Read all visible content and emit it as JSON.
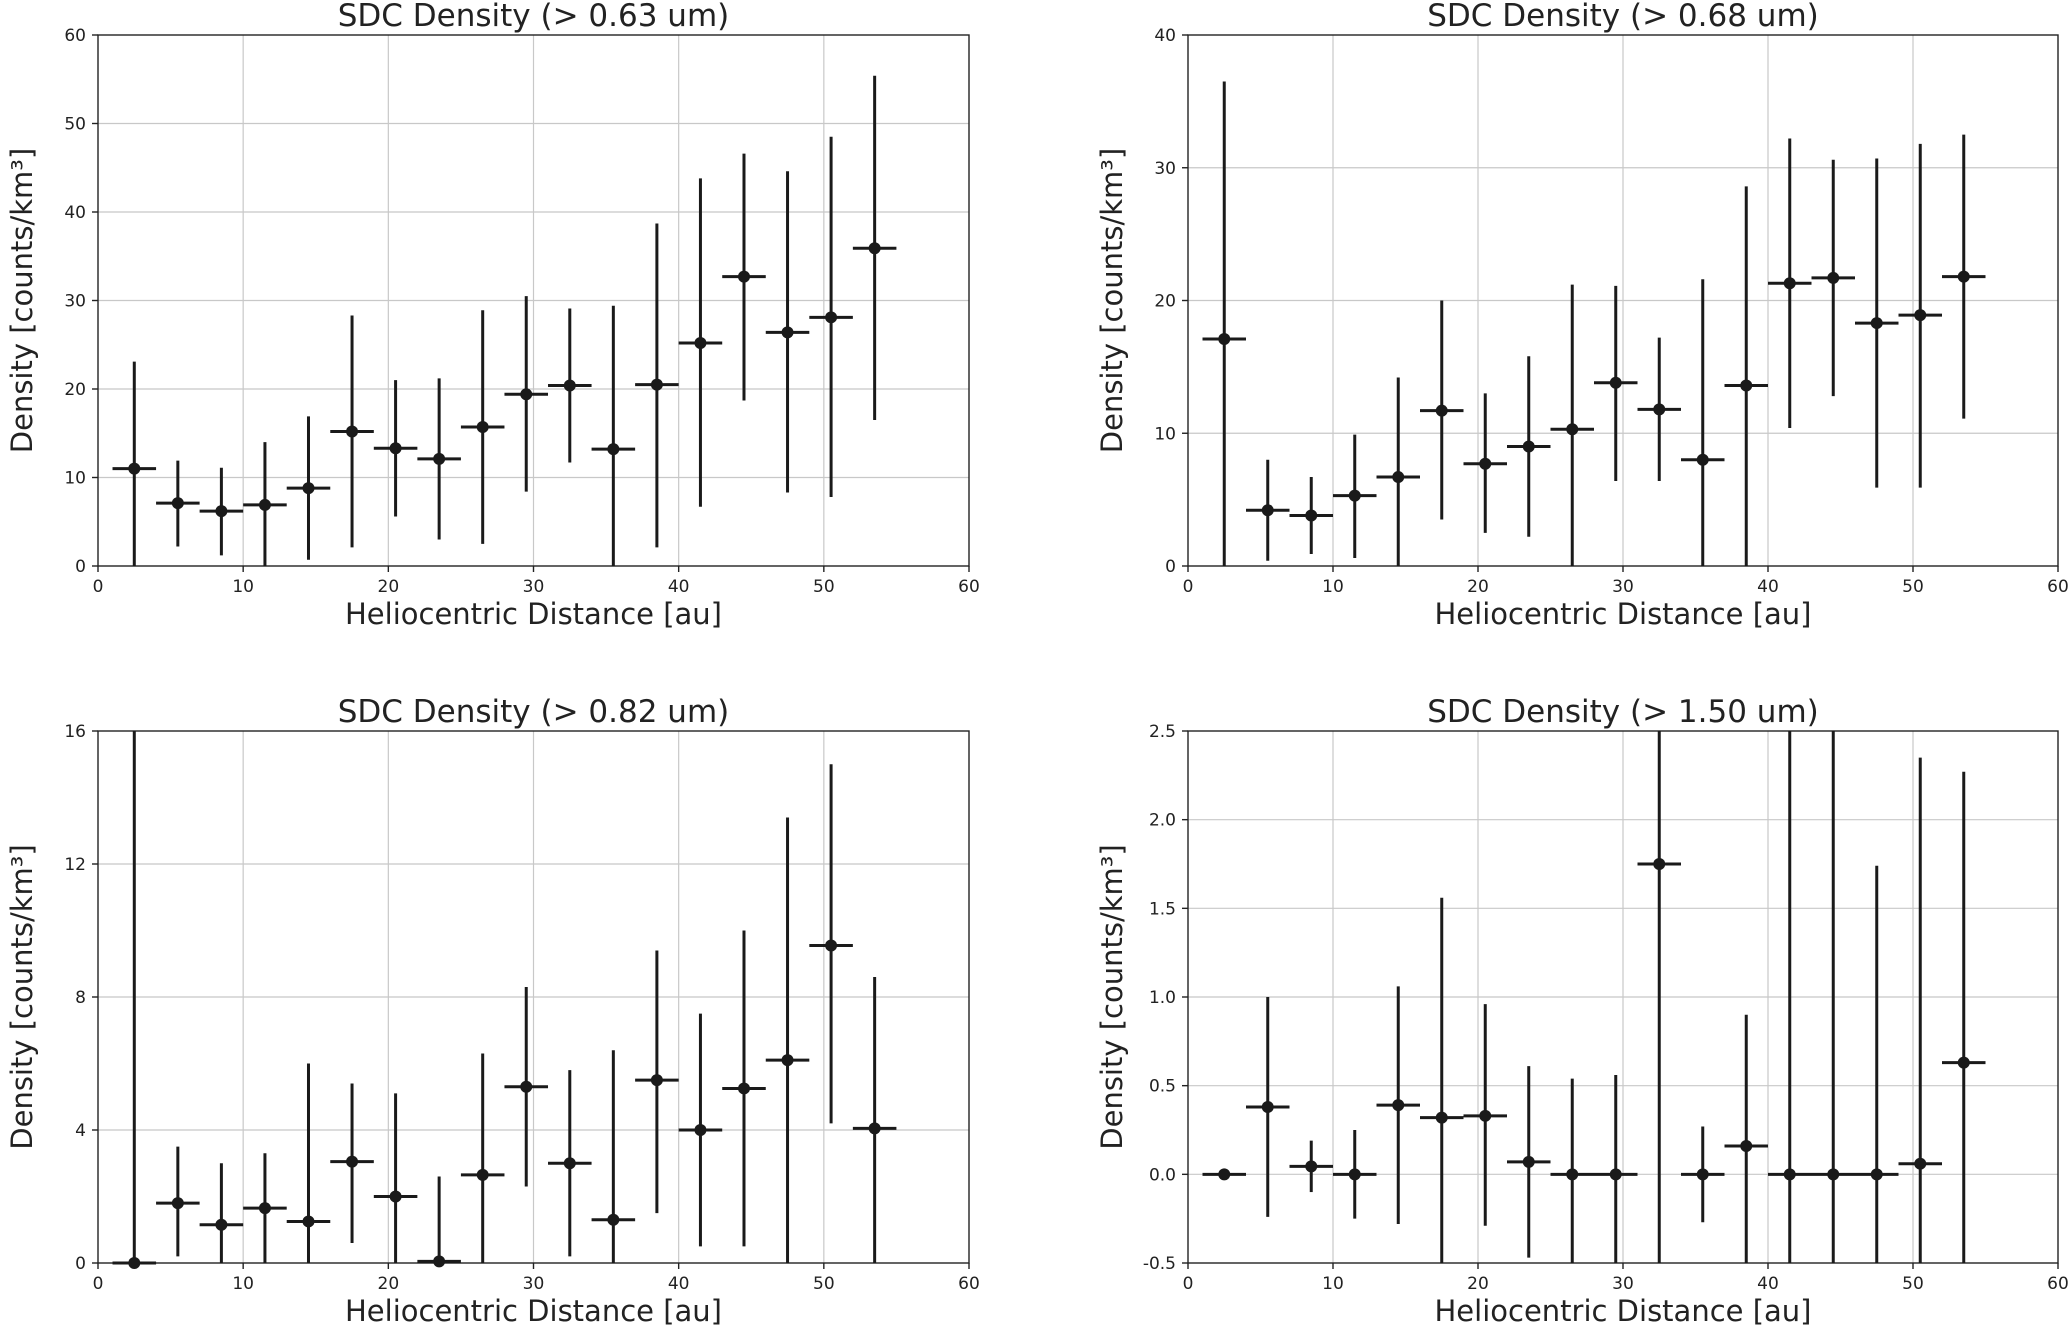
{
  "chart_data": [
    {
      "type": "scatter",
      "title": "SDC Density (> 0.63 um)",
      "xlabel": "Heliocentric Distance [au]",
      "ylabel": "Density [counts/km³]",
      "xlim": [
        0,
        60
      ],
      "ylim": [
        0,
        60
      ],
      "xticks": [
        0,
        10,
        20,
        30,
        40,
        50,
        60
      ],
      "xtick_labels": [
        "0",
        "10",
        "20",
        "30",
        "40",
        "50",
        "60"
      ],
      "yticks": [
        0,
        10,
        20,
        30,
        40,
        50,
        60
      ],
      "ytick_labels": [
        "0",
        "10",
        "20",
        "30",
        "40",
        "50",
        "60"
      ],
      "grid": true,
      "xerr": 1.5,
      "points": [
        {
          "x": 2.5,
          "y": 11.0,
          "lo": 0.0,
          "hi": 23.1
        },
        {
          "x": 5.5,
          "y": 7.1,
          "lo": 2.2,
          "hi": 11.9
        },
        {
          "x": 8.5,
          "y": 6.2,
          "lo": 1.2,
          "hi": 11.1
        },
        {
          "x": 11.5,
          "y": 6.9,
          "lo": 0.0,
          "hi": 14.0
        },
        {
          "x": 14.5,
          "y": 8.8,
          "lo": 0.7,
          "hi": 16.9
        },
        {
          "x": 17.5,
          "y": 15.2,
          "lo": 2.1,
          "hi": 28.3
        },
        {
          "x": 20.5,
          "y": 13.3,
          "lo": 5.6,
          "hi": 21.0
        },
        {
          "x": 23.5,
          "y": 12.1,
          "lo": 3.0,
          "hi": 21.2
        },
        {
          "x": 26.5,
          "y": 15.7,
          "lo": 2.5,
          "hi": 28.9
        },
        {
          "x": 29.5,
          "y": 19.4,
          "lo": 8.4,
          "hi": 30.5
        },
        {
          "x": 32.5,
          "y": 20.4,
          "lo": 11.7,
          "hi": 29.1
        },
        {
          "x": 35.5,
          "y": 13.2,
          "lo": 0.0,
          "hi": 29.4
        },
        {
          "x": 38.5,
          "y": 20.5,
          "lo": 2.1,
          "hi": 38.7
        },
        {
          "x": 41.5,
          "y": 25.2,
          "lo": 6.7,
          "hi": 43.8
        },
        {
          "x": 44.5,
          "y": 32.7,
          "lo": 18.7,
          "hi": 46.6
        },
        {
          "x": 47.5,
          "y": 26.4,
          "lo": 8.3,
          "hi": 44.6
        },
        {
          "x": 50.5,
          "y": 28.1,
          "lo": 7.8,
          "hi": 48.5
        },
        {
          "x": 53.5,
          "y": 35.9,
          "lo": 16.5,
          "hi": 55.4
        }
      ]
    },
    {
      "type": "scatter",
      "title": "SDC Density (> 0.68 um)",
      "xlabel": "Heliocentric Distance [au]",
      "ylabel": "Density [counts/km³]",
      "xlim": [
        0,
        60
      ],
      "ylim": [
        0,
        40
      ],
      "xticks": [
        0,
        10,
        20,
        30,
        40,
        50,
        60
      ],
      "xtick_labels": [
        "0",
        "10",
        "20",
        "30",
        "40",
        "50",
        "60"
      ],
      "yticks": [
        0,
        10,
        20,
        30,
        40
      ],
      "ytick_labels": [
        "0",
        "10",
        "20",
        "30",
        "40"
      ],
      "grid": true,
      "xerr": 1.5,
      "points": [
        {
          "x": 2.5,
          "y": 17.1,
          "lo": 0.0,
          "hi": 36.5
        },
        {
          "x": 5.5,
          "y": 4.2,
          "lo": 0.4,
          "hi": 8.0
        },
        {
          "x": 8.5,
          "y": 3.8,
          "lo": 0.9,
          "hi": 6.7
        },
        {
          "x": 11.5,
          "y": 5.3,
          "lo": 0.6,
          "hi": 9.9
        },
        {
          "x": 14.5,
          "y": 6.7,
          "lo": 0.0,
          "hi": 14.2
        },
        {
          "x": 17.5,
          "y": 11.7,
          "lo": 3.5,
          "hi": 20.0
        },
        {
          "x": 20.5,
          "y": 7.7,
          "lo": 2.5,
          "hi": 13.0
        },
        {
          "x": 23.5,
          "y": 9.0,
          "lo": 2.2,
          "hi": 15.8
        },
        {
          "x": 26.5,
          "y": 10.3,
          "lo": 0.0,
          "hi": 21.2
        },
        {
          "x": 29.5,
          "y": 13.8,
          "lo": 6.4,
          "hi": 21.1
        },
        {
          "x": 32.5,
          "y": 11.8,
          "lo": 6.4,
          "hi": 17.2
        },
        {
          "x": 35.5,
          "y": 8.0,
          "lo": 0.0,
          "hi": 21.6
        },
        {
          "x": 38.5,
          "y": 13.6,
          "lo": 0.0,
          "hi": 28.6
        },
        {
          "x": 41.5,
          "y": 21.3,
          "lo": 10.4,
          "hi": 32.2
        },
        {
          "x": 44.5,
          "y": 21.7,
          "lo": 12.8,
          "hi": 30.6
        },
        {
          "x": 47.5,
          "y": 18.3,
          "lo": 5.9,
          "hi": 30.7
        },
        {
          "x": 50.5,
          "y": 18.9,
          "lo": 5.9,
          "hi": 31.8
        },
        {
          "x": 53.5,
          "y": 21.8,
          "lo": 11.1,
          "hi": 32.5
        }
      ]
    },
    {
      "type": "scatter",
      "title": "SDC Density (> 0.82 um)",
      "xlabel": "Heliocentric Distance [au]",
      "ylabel": "Density [counts/km³]",
      "xlim": [
        0,
        60
      ],
      "ylim": [
        0,
        16
      ],
      "xticks": [
        0,
        10,
        20,
        30,
        40,
        50,
        60
      ],
      "xtick_labels": [
        "0",
        "10",
        "20",
        "30",
        "40",
        "50",
        "60"
      ],
      "yticks": [
        0,
        4,
        8,
        12,
        16
      ],
      "ytick_labels": [
        "0",
        "4",
        "8",
        "12",
        "16"
      ],
      "grid": true,
      "xerr": 1.5,
      "points": [
        {
          "x": 2.5,
          "y": 0.0,
          "lo": 0.0,
          "hi": 16.0
        },
        {
          "x": 5.5,
          "y": 1.8,
          "lo": 0.2,
          "hi": 3.5
        },
        {
          "x": 8.5,
          "y": 1.15,
          "lo": 0.0,
          "hi": 3.0
        },
        {
          "x": 11.5,
          "y": 1.65,
          "lo": 0.0,
          "hi": 3.3
        },
        {
          "x": 14.5,
          "y": 1.25,
          "lo": 0.0,
          "hi": 6.0
        },
        {
          "x": 17.5,
          "y": 3.05,
          "lo": 0.6,
          "hi": 5.4
        },
        {
          "x": 20.5,
          "y": 2.0,
          "lo": 0.0,
          "hi": 5.1
        },
        {
          "x": 23.5,
          "y": 0.05,
          "lo": 0.0,
          "hi": 2.6
        },
        {
          "x": 26.5,
          "y": 2.65,
          "lo": 0.0,
          "hi": 6.3
        },
        {
          "x": 29.5,
          "y": 5.3,
          "lo": 2.3,
          "hi": 8.3
        },
        {
          "x": 32.5,
          "y": 3.0,
          "lo": 0.2,
          "hi": 5.8
        },
        {
          "x": 35.5,
          "y": 1.3,
          "lo": 0.0,
          "hi": 6.4
        },
        {
          "x": 38.5,
          "y": 5.5,
          "lo": 1.5,
          "hi": 9.4
        },
        {
          "x": 41.5,
          "y": 4.0,
          "lo": 0.5,
          "hi": 7.5
        },
        {
          "x": 44.5,
          "y": 5.25,
          "lo": 0.5,
          "hi": 10.0
        },
        {
          "x": 47.5,
          "y": 6.1,
          "lo": 0.0,
          "hi": 13.4
        },
        {
          "x": 50.5,
          "y": 9.55,
          "lo": 4.2,
          "hi": 15.0
        },
        {
          "x": 53.5,
          "y": 4.05,
          "lo": 0.0,
          "hi": 8.6
        }
      ]
    },
    {
      "type": "scatter",
      "title": "SDC Density (> 1.50 um)",
      "xlabel": "Heliocentric Distance [au]",
      "ylabel": "Density [counts/km³]",
      "xlim": [
        0,
        60
      ],
      "ylim": [
        -0.5,
        2.5
      ],
      "xticks": [
        0,
        10,
        20,
        30,
        40,
        50,
        60
      ],
      "xtick_labels": [
        "0",
        "10",
        "20",
        "30",
        "40",
        "50",
        "60"
      ],
      "yticks": [
        -0.5,
        0.0,
        0.5,
        1.0,
        1.5,
        2.0,
        2.5
      ],
      "ytick_labels": [
        "-0.5",
        "0.0",
        "0.5",
        "1.0",
        "1.5",
        "2.0",
        "2.5"
      ],
      "grid": true,
      "xerr": 1.5,
      "points": [
        {
          "x": 2.5,
          "y": 0.0,
          "lo": 0.0,
          "hi": 0.0
        },
        {
          "x": 5.5,
          "y": 0.38,
          "lo": -0.24,
          "hi": 1.0
        },
        {
          "x": 8.5,
          "y": 0.045,
          "lo": -0.1,
          "hi": 0.19
        },
        {
          "x": 11.5,
          "y": 0.0,
          "lo": -0.25,
          "hi": 0.25
        },
        {
          "x": 14.5,
          "y": 0.39,
          "lo": -0.28,
          "hi": 1.06
        },
        {
          "x": 17.5,
          "y": 0.32,
          "lo": -0.5,
          "hi": 1.56
        },
        {
          "x": 20.5,
          "y": 0.33,
          "lo": -0.29,
          "hi": 0.96
        },
        {
          "x": 23.5,
          "y": 0.07,
          "lo": -0.47,
          "hi": 0.61
        },
        {
          "x": 26.5,
          "y": 0.0,
          "lo": -0.5,
          "hi": 0.54
        },
        {
          "x": 29.5,
          "y": 0.0,
          "lo": -0.5,
          "hi": 0.56
        },
        {
          "x": 32.5,
          "y": 1.75,
          "lo": -0.5,
          "hi": 2.5
        },
        {
          "x": 35.5,
          "y": 0.0,
          "lo": -0.27,
          "hi": 0.27
        },
        {
          "x": 38.5,
          "y": 0.16,
          "lo": -0.5,
          "hi": 0.9
        },
        {
          "x": 41.5,
          "y": 0.0,
          "lo": -0.5,
          "hi": 2.5
        },
        {
          "x": 44.5,
          "y": 0.0,
          "lo": -0.5,
          "hi": 2.5
        },
        {
          "x": 47.5,
          "y": 0.0,
          "lo": -0.5,
          "hi": 1.74
        },
        {
          "x": 50.5,
          "y": 0.06,
          "lo": -0.5,
          "hi": 2.35
        },
        {
          "x": 53.5,
          "y": 0.63,
          "lo": -0.5,
          "hi": 2.27
        }
      ]
    }
  ]
}
